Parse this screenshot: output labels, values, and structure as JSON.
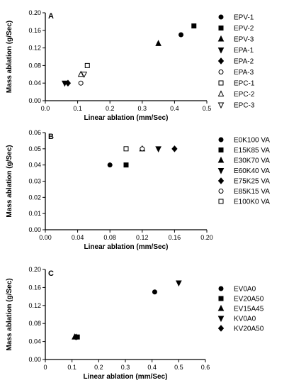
{
  "chart_data": [
    {
      "panel_label": "A",
      "type": "scatter",
      "xlabel": "Linear ablation (mm/Sec)",
      "ylabel": "Mass ablation (g/Sec)",
      "xlim": [
        0.0,
        0.5
      ],
      "ylim": [
        0.0,
        0.2
      ],
      "xticks": [
        "0.0",
        "0.1",
        "0.2",
        "0.3",
        "0.4",
        "0.5"
      ],
      "yticks": [
        "0.00",
        "0.04",
        "0.08",
        "0.12",
        "0.16",
        "0.20"
      ],
      "legend_position": "right",
      "series": [
        {
          "name": "EPV-1",
          "marker": "circle",
          "points": [
            [
              0.42,
              0.15
            ]
          ]
        },
        {
          "name": "EPV-2",
          "marker": "square",
          "points": [
            [
              0.46,
              0.17
            ]
          ]
        },
        {
          "name": "EPV-3",
          "marker": "triangle-up",
          "points": [
            [
              0.35,
              0.13
            ]
          ]
        },
        {
          "name": "EPA-1",
          "marker": "triangle-down",
          "points": [
            [
              0.06,
              0.04
            ]
          ]
        },
        {
          "name": "EPA-2",
          "marker": "diamond",
          "points": [
            [
              0.07,
              0.04
            ]
          ]
        },
        {
          "name": "EPA-3",
          "marker": "circle-open",
          "points": [
            [
              0.11,
              0.04
            ]
          ]
        },
        {
          "name": "EPC-1",
          "marker": "square-open",
          "points": [
            [
              0.13,
              0.08
            ]
          ]
        },
        {
          "name": "EPC-2",
          "marker": "triangle-up-open",
          "points": [
            [
              0.11,
              0.06
            ]
          ]
        },
        {
          "name": "EPC-3",
          "marker": "triangle-down-open",
          "points": [
            [
              0.12,
              0.06
            ]
          ]
        }
      ]
    },
    {
      "panel_label": "B",
      "type": "scatter",
      "xlabel": "Linear ablation (mm/Sec)",
      "ylabel": "Mass ablation (g/Sec)",
      "xlim": [
        0.0,
        0.2
      ],
      "ylim": [
        0.0,
        0.06
      ],
      "xticks": [
        "0.00",
        "0.04",
        "0.08",
        "0.12",
        "0.16",
        "0.20"
      ],
      "yticks": [
        "0.00",
        "0.01",
        "0.02",
        "0.03",
        "0.04",
        "0.05",
        "0.06"
      ],
      "legend_position": "right",
      "series": [
        {
          "name": "E0K100 VA",
          "marker": "circle",
          "points": [
            [
              0.08,
              0.04
            ]
          ]
        },
        {
          "name": "E15K85 VA",
          "marker": "square",
          "points": [
            [
              0.1,
              0.04
            ]
          ]
        },
        {
          "name": "E30K70 VA",
          "marker": "triangle-up",
          "points": [
            [
              0.12,
              0.05
            ]
          ]
        },
        {
          "name": "E60K40 VA",
          "marker": "triangle-down",
          "points": [
            [
              0.14,
              0.05
            ]
          ]
        },
        {
          "name": "E75K25 VA",
          "marker": "diamond",
          "points": [
            [
              0.16,
              0.05
            ]
          ]
        },
        {
          "name": "E85K15 VA",
          "marker": "circle-open",
          "points": [
            [
              0.12,
              0.05
            ]
          ]
        },
        {
          "name": "E100K0 VA",
          "marker": "square-open",
          "points": [
            [
              0.1,
              0.05
            ]
          ]
        }
      ]
    },
    {
      "panel_label": "C",
      "type": "scatter",
      "xlabel": "Linear ablation (mm/Sec)",
      "ylabel": "Mass ablation (g/Sec)",
      "xlim": [
        0.0,
        0.6
      ],
      "ylim": [
        0.0,
        0.2
      ],
      "xticks": [
        "0",
        "0.1",
        "0.2",
        "0.3",
        "0.4",
        "0.5",
        "0.6"
      ],
      "yticks": [
        "0.00",
        "0.04",
        "0.08",
        "0.12",
        "0.16",
        "0.20"
      ],
      "legend_position": "right",
      "series": [
        {
          "name": "EV0A0",
          "marker": "circle",
          "points": [
            [
              0.41,
              0.15
            ]
          ]
        },
        {
          "name": "EV20A50",
          "marker": "square",
          "points": [
            [
              0.12,
              0.05
            ]
          ]
        },
        {
          "name": "EV15A45",
          "marker": "triangle-up",
          "points": [
            [
              0.11,
              0.05
            ]
          ]
        },
        {
          "name": "KV0A0",
          "marker": "triangle-down",
          "points": [
            [
              0.5,
              0.17
            ]
          ]
        },
        {
          "name": "KV20A50",
          "marker": "diamond",
          "points": [
            [
              0.115,
              0.05
            ]
          ]
        }
      ]
    }
  ]
}
